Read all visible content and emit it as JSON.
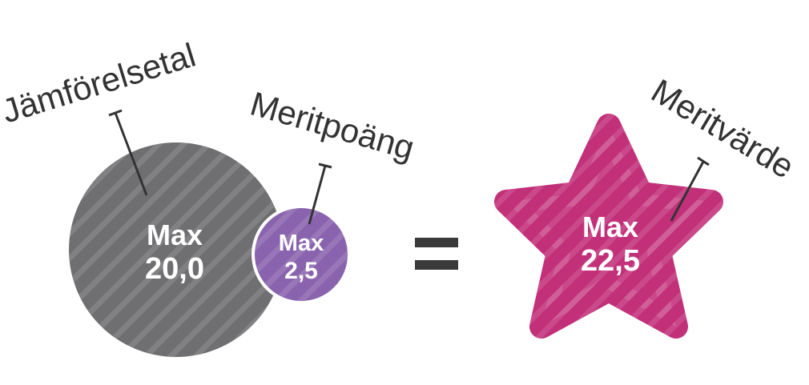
{
  "labels": {
    "jamforelsetal": "Jämförelsetal",
    "meritpoang": "Meritpoäng",
    "meritvarde": "Meritvärde"
  },
  "values": {
    "big_circle_line1": "Max",
    "big_circle_line2": "20,0",
    "small_circle_line1": "Max",
    "small_circle_line2": "2,5",
    "star_line1": "Max",
    "star_line2": "22,5"
  },
  "operator": "=",
  "colors": {
    "gray": "#6f6f72",
    "purple": "#8a63ae",
    "magenta": "#c2307a",
    "label_text": "#333333",
    "value_text": "#ffffff",
    "operator": "#3a3a3a"
  },
  "icons": {
    "big_circle": "gray-circle-icon",
    "small_circle": "purple-circle-icon",
    "star": "magenta-star-icon"
  }
}
